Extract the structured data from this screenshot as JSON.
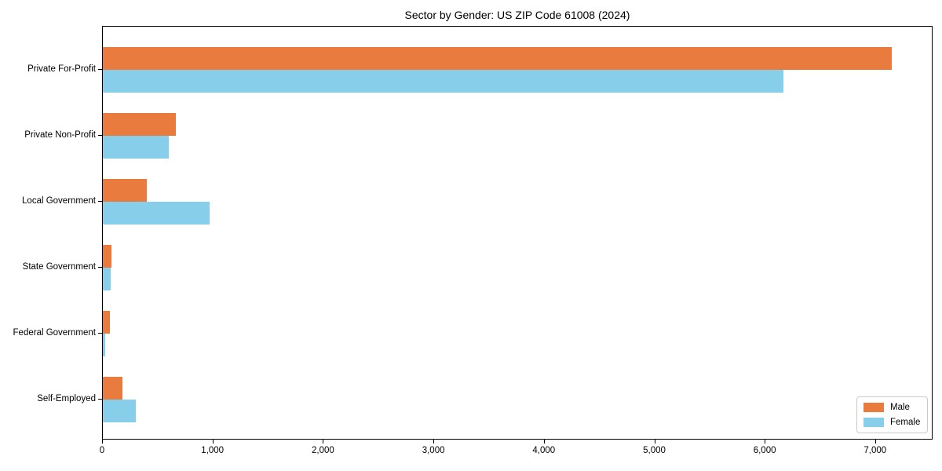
{
  "chart_data": {
    "type": "bar",
    "orientation": "horizontal",
    "title": "Sector by Gender: US ZIP Code 61008 (2024)",
    "categories": [
      "Private For-Profit",
      "Private Non-Profit",
      "Local Government",
      "State Government",
      "Federal Government",
      "Self-Employed"
    ],
    "series": [
      {
        "name": "Male",
        "color": "#E87B3D",
        "values": [
          7140,
          660,
          400,
          80,
          65,
          175
        ]
      },
      {
        "name": "Female",
        "color": "#87CEEB",
        "values": [
          6160,
          600,
          965,
          70,
          20,
          300
        ]
      }
    ],
    "xlabel": "",
    "ylabel": "",
    "xlim": [
      0,
      7520
    ],
    "xticks": [
      0,
      1000,
      2000,
      3000,
      4000,
      5000,
      6000,
      7000
    ],
    "xtick_labels": [
      "0",
      "1,000",
      "2,000",
      "3,000",
      "4,000",
      "5,000",
      "6,000",
      "7,000"
    ],
    "grid": false,
    "legend": {
      "position": "lower right"
    },
    "colors": {
      "male": "#E87B3D",
      "female": "#87CEEB",
      "axis": "#000000",
      "background": "#ffffff",
      "legend_border": "#c9c9c9"
    }
  }
}
